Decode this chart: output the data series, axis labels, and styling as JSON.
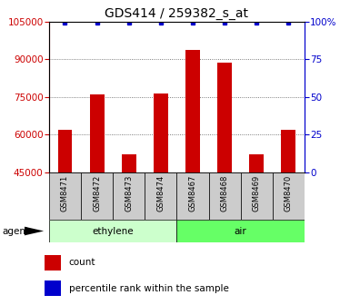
{
  "title": "GDS414 / 259382_s_at",
  "samples": [
    "GSM8471",
    "GSM8472",
    "GSM8473",
    "GSM8474",
    "GSM8467",
    "GSM8468",
    "GSM8469",
    "GSM8470"
  ],
  "bar_values": [
    62000,
    76000,
    52000,
    76500,
    93500,
    88500,
    52000,
    62000
  ],
  "percentile_values": [
    99,
    99,
    99,
    99,
    99,
    99,
    99,
    99
  ],
  "bar_color": "#cc0000",
  "percentile_color": "#0000cc",
  "ylim_left": [
    45000,
    105000
  ],
  "ylim_right": [
    0,
    100
  ],
  "yticks_left": [
    45000,
    60000,
    75000,
    90000,
    105000
  ],
  "yticks_right": [
    0,
    25,
    50,
    75,
    100
  ],
  "ytick_labels_right": [
    "0",
    "25",
    "50",
    "75",
    "100%"
  ],
  "groups": [
    {
      "label": "ethylene",
      "indices": [
        0,
        1,
        2,
        3
      ],
      "color": "#ccffcc"
    },
    {
      "label": "air",
      "indices": [
        4,
        5,
        6,
        7
      ],
      "color": "#66ff66"
    }
  ],
  "agent_label": "agent",
  "legend_count_label": "count",
  "legend_percentile_label": "percentile rank within the sample",
  "background_color": "#ffffff",
  "sample_box_color": "#cccccc",
  "title_fontsize": 10,
  "tick_fontsize": 7.5,
  "bar_width": 0.45
}
